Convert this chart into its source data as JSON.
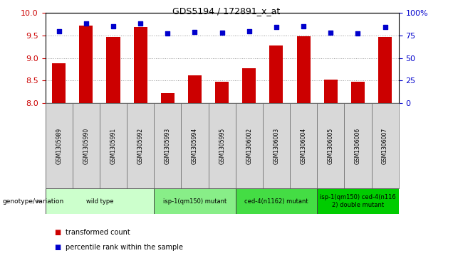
{
  "title": "GDS5194 / 172891_x_at",
  "samples": [
    "GSM1305989",
    "GSM1305990",
    "GSM1305991",
    "GSM1305992",
    "GSM1305993",
    "GSM1305994",
    "GSM1305995",
    "GSM1306002",
    "GSM1306003",
    "GSM1306004",
    "GSM1306005",
    "GSM1306006",
    "GSM1306007"
  ],
  "transformed_counts": [
    8.88,
    9.72,
    9.47,
    9.68,
    8.22,
    8.62,
    8.47,
    8.78,
    9.28,
    9.48,
    8.52,
    8.47,
    9.47
  ],
  "percentile_ranks": [
    80,
    88,
    85,
    88,
    77,
    79,
    78,
    80,
    84,
    85,
    78,
    77,
    84
  ],
  "ylim_left": [
    8,
    10
  ],
  "ylim_right": [
    0,
    100
  ],
  "yticks_left": [
    8,
    8.5,
    9,
    9.5,
    10
  ],
  "yticks_right": [
    0,
    25,
    50,
    75,
    100
  ],
  "bar_color": "#cc0000",
  "dot_color": "#0000cc",
  "groups": [
    {
      "label": "wild type",
      "indices": [
        0,
        1,
        2,
        3
      ],
      "color": "#ccffcc"
    },
    {
      "label": "isp-1(qm150) mutant",
      "indices": [
        4,
        5,
        6
      ],
      "color": "#88ee88"
    },
    {
      "label": "ced-4(n1162) mutant",
      "indices": [
        7,
        8,
        9
      ],
      "color": "#44dd44"
    },
    {
      "label": "isp-1(qm150) ced-4(n116\n2) double mutant",
      "indices": [
        10,
        11,
        12
      ],
      "color": "#00cc00"
    }
  ],
  "bg_color": "#d8d8d8",
  "plot_bg": "#ffffff",
  "grid_color": "#999999",
  "bar_width": 0.5,
  "dot_size": 25
}
